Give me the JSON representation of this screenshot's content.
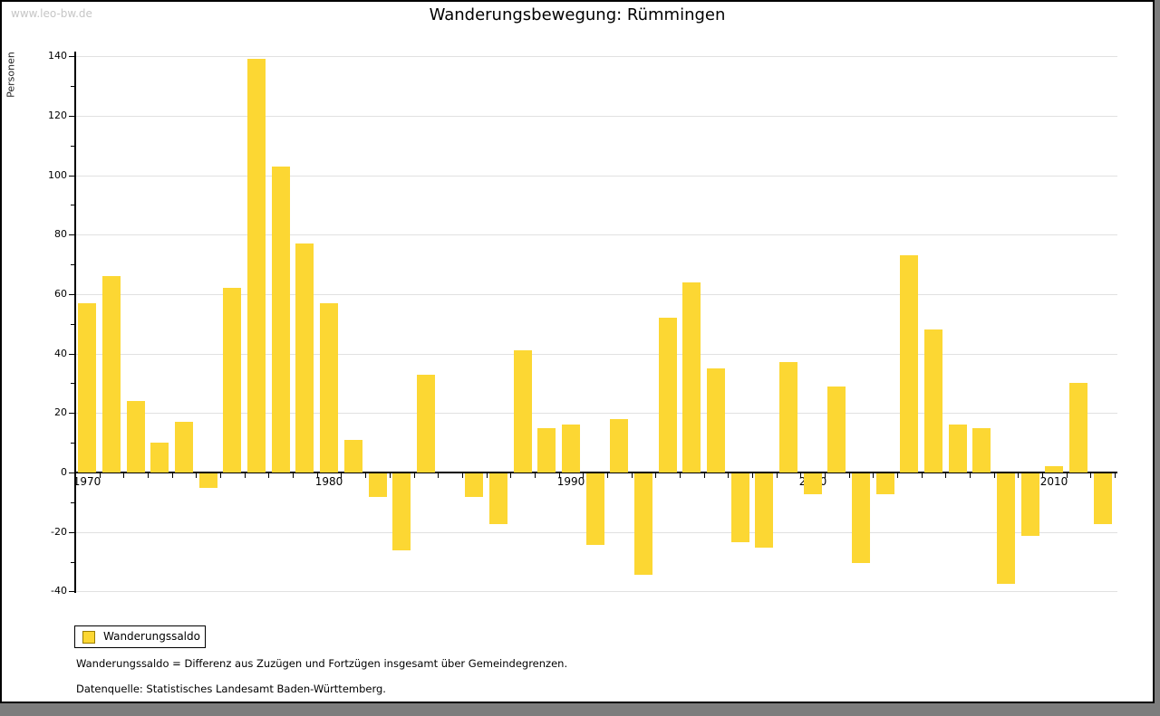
{
  "watermark": "www.leo-bw.de",
  "header": {
    "title": "Wanderungsbewegung: Rümmingen"
  },
  "legend": {
    "label": "Wanderungssaldo"
  },
  "footnotes": {
    "definition": "Wanderungssaldo = Differenz aus Zuzügen und Fortzügen insgesamt über Gemeindegrenzen.",
    "source": "Datenquelle: Statistisches Landesamt Baden-Württemberg."
  },
  "colors": {
    "bar": "#fcd733",
    "legend_swatch_border": "#9a7d00",
    "grid": "#e1e1e1",
    "axis": "#000000",
    "watermark": "#c6c6c6",
    "outer_frame": "#7d7d7d"
  },
  "chart_data": {
    "type": "bar",
    "title": "Wanderungsbewegung: Rümmingen",
    "xlabel": "",
    "ylabel": "Personen",
    "series_name": "Wanderungssaldo",
    "ylim": [
      -40,
      140
    ],
    "y_ticks": [
      140,
      120,
      100,
      80,
      60,
      40,
      20,
      0,
      -20,
      -40
    ],
    "x_tick_labels": [
      1970,
      1980,
      1990,
      2000,
      2010
    ],
    "grid": true,
    "legend_position": "bottom-left",
    "years": [
      1970,
      1971,
      1972,
      1973,
      1974,
      1975,
      1976,
      1977,
      1978,
      1979,
      1980,
      1981,
      1982,
      1983,
      1984,
      1985,
      1986,
      1987,
      1988,
      1989,
      1990,
      1991,
      1992,
      1993,
      1994,
      1995,
      1996,
      1997,
      1998,
      1999,
      2000,
      2001,
      2002,
      2003,
      2004,
      2005,
      2006,
      2007,
      2008,
      2009,
      2010,
      2011,
      2012
    ],
    "values": [
      57,
      66,
      24,
      10,
      17,
      -5,
      62,
      139,
      103,
      77,
      57,
      11,
      -8,
      -26,
      33,
      0,
      -8,
      -17,
      41,
      15,
      16,
      -24,
      18,
      -34,
      52,
      64,
      35,
      -23,
      -25,
      37,
      -7,
      29,
      -30,
      -7,
      73,
      48,
      16,
      15,
      -37,
      -21,
      2,
      30,
      -17
    ]
  }
}
